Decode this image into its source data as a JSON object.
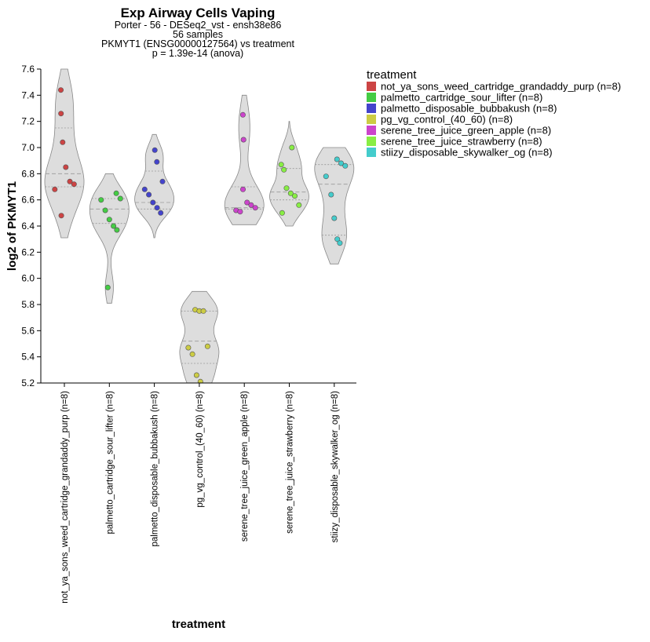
{
  "chart_data": {
    "type": "violin",
    "title": "Exp Airway Cells Vaping",
    "subtitle_lines": [
      "Porter - 56 - DESeq2_vst - ensh38e86",
      "56 samples",
      "PKMYT1 (ENSG00000127564) vs treatment",
      "p = 1.39e-14 (anova)"
    ],
    "xlabel": "treatment",
    "ylabel": "log2 of PKMYT1",
    "ylim": [
      5.2,
      7.6
    ],
    "yticks": [
      "5.2",
      "5.4",
      "5.6",
      "5.8",
      "6.0",
      "6.2",
      "6.4",
      "6.6",
      "6.8",
      "7.0",
      "7.2",
      "7.4",
      "7.6"
    ],
    "legend": {
      "title": "treatment",
      "position": "right"
    },
    "series": [
      {
        "name": "not_ya_sons_weed_cartridge_grandaddy_purp",
        "label": "not_ya_sons_weed_cartridge_grandaddy_purp (n=8)",
        "color": "#cc4444",
        "values": [
          7.44,
          7.26,
          7.04,
          6.85,
          6.74,
          6.72,
          6.68,
          6.48
        ],
        "q1": 6.7,
        "median": 6.8,
        "q3": 7.15,
        "range": [
          6.31,
          7.6
        ]
      },
      {
        "name": "palmetto_cartridge_sour_lifter",
        "label": "palmetto_cartridge_sour_lifter (n=8)",
        "color": "#44cc44",
        "values": [
          6.65,
          6.61,
          6.6,
          6.52,
          6.45,
          6.4,
          6.37,
          5.93
        ],
        "q1": 6.42,
        "median": 6.53,
        "q3": 6.61,
        "range": [
          5.81,
          6.8
        ]
      },
      {
        "name": "palmetto_disposable_bubbakush",
        "label": "palmetto_disposable_bubbakush (n=8)",
        "color": "#4444cc",
        "values": [
          6.98,
          6.89,
          6.74,
          6.68,
          6.64,
          6.58,
          6.54,
          6.5
        ],
        "q1": 6.53,
        "median": 6.58,
        "q3": 6.82,
        "range": [
          6.31,
          7.1
        ]
      },
      {
        "name": "pg_vg_control_(40_60)",
        "label": "pg_vg_control_(40_60) (n=8)",
        "color": "#cccc44",
        "values": [
          5.76,
          5.75,
          5.75,
          5.48,
          5.47,
          5.42,
          5.26,
          5.21
        ],
        "q1": 5.35,
        "median": 5.52,
        "q3": 5.75,
        "range": [
          5.1,
          5.9
        ]
      },
      {
        "name": "serene_tree_juice_green_apple",
        "label": "serene_tree_juice_green_apple (n=8)",
        "color": "#cc44cc",
        "values": [
          7.25,
          7.06,
          6.68,
          6.58,
          6.56,
          6.54,
          6.52,
          6.51
        ],
        "q1": 6.53,
        "median": 6.54,
        "q3": 6.7,
        "range": [
          6.41,
          7.4
        ]
      },
      {
        "name": "serene_tree_juice_strawberry",
        "label": "serene_tree_juice_strawberry (n=8)",
        "color": "#88ee44",
        "values": [
          7.0,
          6.87,
          6.83,
          6.69,
          6.65,
          6.63,
          6.56,
          6.5
        ],
        "q1": 6.6,
        "median": 6.66,
        "q3": 6.84,
        "range": [
          6.4,
          7.2
        ]
      },
      {
        "name": "stiizy_disposable_skywalker_og",
        "label": "stiizy_disposable_skywalker_og (n=8)",
        "color": "#44cccc",
        "values": [
          6.91,
          6.88,
          6.86,
          6.78,
          6.64,
          6.46,
          6.3,
          6.27
        ],
        "q1": 6.33,
        "median": 6.72,
        "q3": 6.87,
        "range": [
          6.11,
          7.0
        ]
      }
    ]
  }
}
